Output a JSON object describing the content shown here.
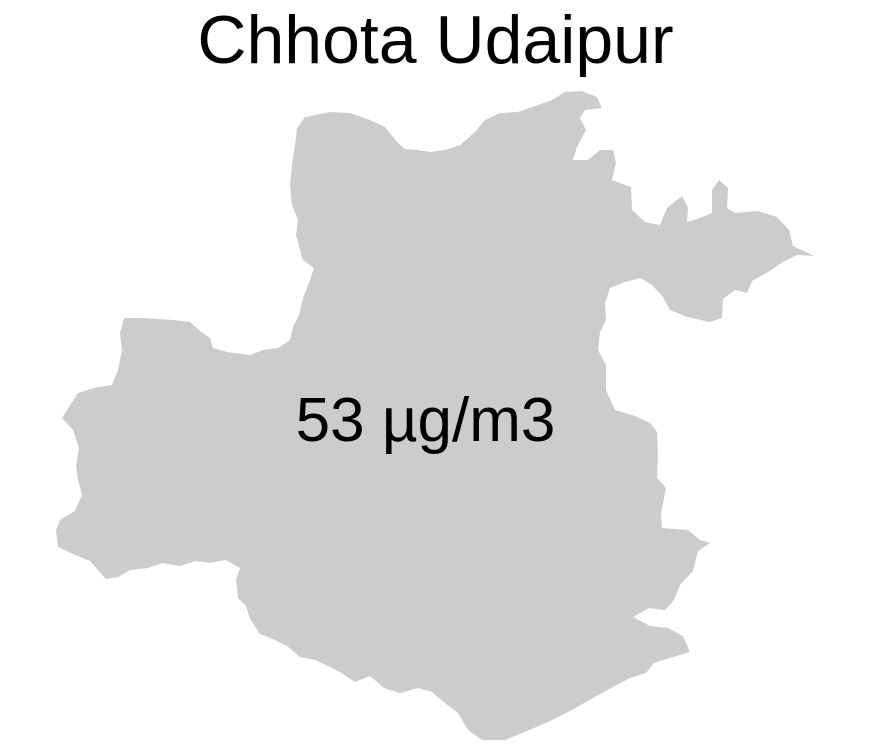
{
  "map": {
    "title": "Chhota Udaipur",
    "region_label": "53 µg/m3",
    "fill_color": "#cccccc",
    "background_color": "#ffffff",
    "text_color": "#000000"
  }
}
